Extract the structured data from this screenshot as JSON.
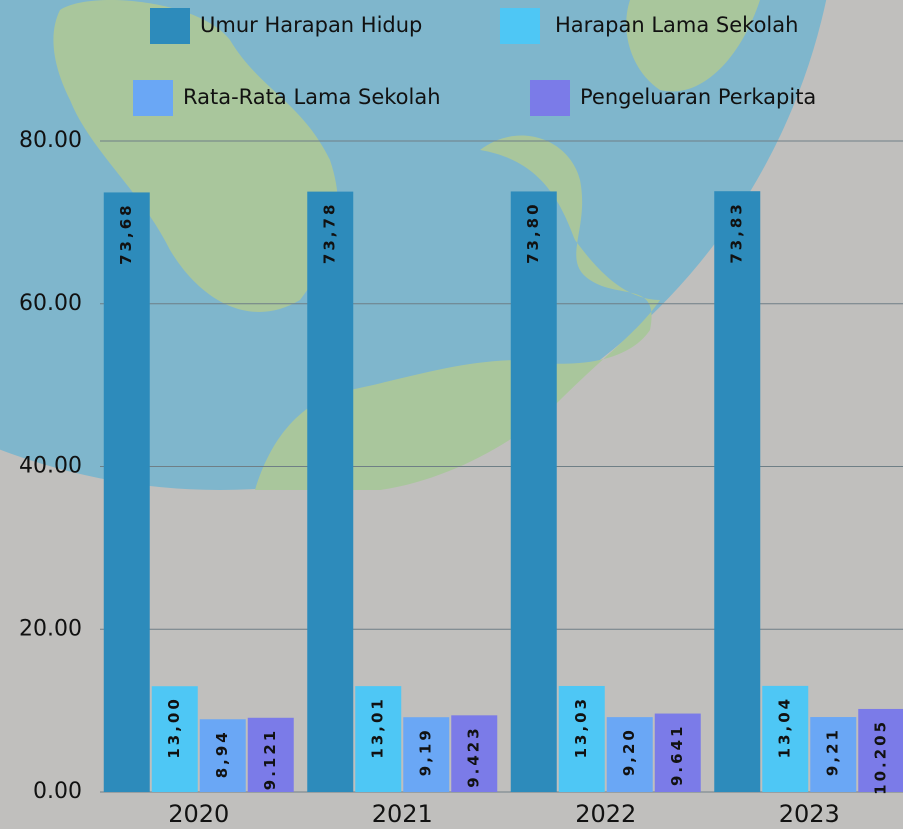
{
  "chart_data": {
    "type": "bar",
    "categories": [
      "2020",
      "2021",
      "2022",
      "2023"
    ],
    "series": [
      {
        "name": "Umur Harapan Hidup",
        "color": "#2d8bbb",
        "values": [
          73.68,
          73.78,
          73.8,
          73.83
        ],
        "value_labels": [
          "73,68",
          "73,78",
          "73,80",
          "73,83"
        ]
      },
      {
        "name": "Harapan Lama Sekolah",
        "color": "#4ec7f5",
        "values": [
          13.0,
          13.01,
          13.03,
          13.04
        ],
        "value_labels": [
          "13,00",
          "13,01",
          "13,03",
          "13,04"
        ]
      },
      {
        "name": "Rata-Rata Lama Sekolah",
        "color": "#6aa7f5",
        "values": [
          8.94,
          9.19,
          9.2,
          9.21
        ],
        "value_labels": [
          "8,94",
          "9,19",
          "9,20",
          "9,21"
        ]
      },
      {
        "name": "Pengeluaran Perkapita",
        "color": "#7b7be8",
        "values": [
          9.121,
          9.423,
          9.641,
          10.205
        ]
      }
    ],
    "ylim": [
      0,
      80
    ],
    "yticks": [
      {
        "value": 0,
        "label": "0.00"
      },
      {
        "value": 20,
        "label": "20.00"
      },
      {
        "value": 40,
        "label": "40.00"
      },
      {
        "value": 60,
        "label": "60.00"
      },
      {
        "value": 80,
        "label": "80.00"
      }
    ],
    "grid": true
  }
}
